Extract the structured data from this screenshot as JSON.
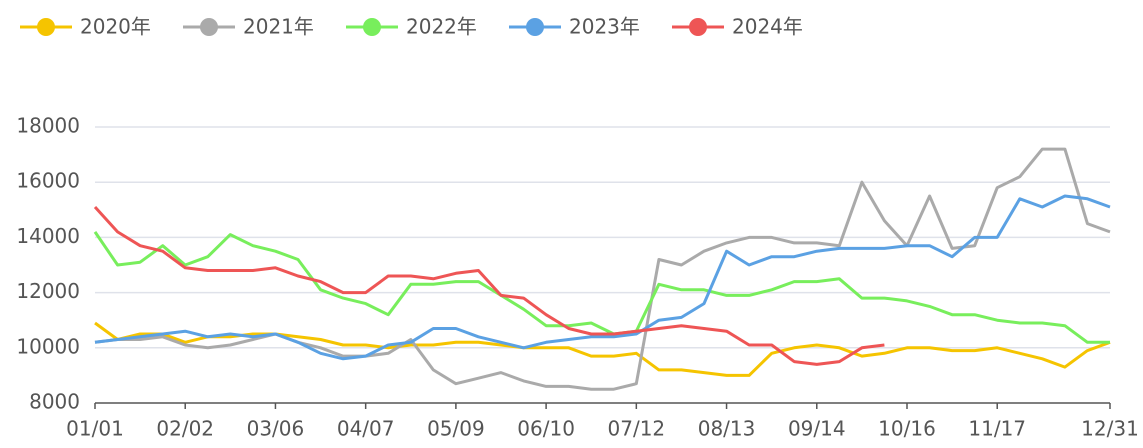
{
  "chart_data": {
    "type": "line",
    "categories": [
      "01/01",
      null,
      null,
      null,
      "02/02",
      null,
      null,
      null,
      "03/06",
      null,
      null,
      null,
      "04/07",
      null,
      null,
      null,
      "05/09",
      null,
      null,
      null,
      "06/10",
      null,
      null,
      null,
      "07/12",
      null,
      null,
      null,
      "08/13",
      null,
      null,
      null,
      "09/14",
      null,
      null,
      null,
      "10/16",
      null,
      null,
      null,
      "11/17",
      null,
      null,
      null,
      null,
      "12/31"
    ],
    "series": [
      {
        "name": "2020年",
        "color": "#f5c400",
        "values": [
          10900,
          10300,
          10500,
          10500,
          10200,
          10400,
          10400,
          10500,
          10500,
          10400,
          10300,
          10100,
          10100,
          10000,
          10100,
          10100,
          10200,
          10200,
          10100,
          10000,
          10000,
          10000,
          9700,
          9700,
          9800,
          9200,
          9200,
          9100,
          9000,
          9000,
          9800,
          10000,
          10100,
          10000,
          9700,
          9800,
          10000,
          10000,
          9900,
          9900,
          10000,
          9800,
          9600,
          9300,
          9900,
          10200
        ]
      },
      {
        "name": "2021年",
        "color": "#aaaaaa",
        "values": [
          10200,
          10300,
          10300,
          10400,
          10100,
          10000,
          10100,
          10300,
          10500,
          10200,
          10000,
          9700,
          9700,
          9800,
          10300,
          9200,
          8700,
          8900,
          9100,
          8800,
          8600,
          8600,
          8500,
          8500,
          8700,
          13200,
          13000,
          13500,
          13800,
          14000,
          14000,
          13800,
          13800,
          13700,
          16000,
          14600,
          13700,
          15500,
          13600,
          13700,
          15800,
          16200,
          17200,
          17200,
          14500,
          14200
        ]
      },
      {
        "name": "2022年",
        "color": "#78ee5c",
        "values": [
          14200,
          13000,
          13100,
          13700,
          13000,
          13300,
          14100,
          13700,
          13500,
          13200,
          12100,
          11800,
          11600,
          11200,
          12300,
          12300,
          12400,
          12400,
          11900,
          11400,
          10800,
          10800,
          10900,
          10500,
          10600,
          12300,
          12100,
          12100,
          11900,
          11900,
          12100,
          12400,
          12400,
          12500,
          11800,
          11800,
          11700,
          11500,
          11200,
          11200,
          11000,
          10900,
          10900,
          10800,
          10200,
          10200
        ]
      },
      {
        "name": "2023年",
        "color": "#5ba1e3",
        "values": [
          10200,
          10300,
          10400,
          10500,
          10600,
          10400,
          10500,
          10400,
          10500,
          10200,
          9800,
          9600,
          9700,
          10100,
          10200,
          10700,
          10700,
          10400,
          10200,
          10000,
          10200,
          10300,
          10400,
          10400,
          10500,
          11000,
          11100,
          11600,
          13500,
          13000,
          13300,
          13300,
          13500,
          13600,
          13600,
          13600,
          13700,
          13700,
          13300,
          14000,
          14000,
          15400,
          15100,
          15500,
          15400,
          15100
        ]
      },
      {
        "name": "2024年",
        "color": "#ee5555",
        "values": [
          15100,
          14200,
          13700,
          13500,
          12900,
          12800,
          12800,
          12800,
          12900,
          12600,
          12400,
          12000,
          12000,
          12600,
          12600,
          12500,
          12700,
          12800,
          11900,
          11800,
          11200,
          10700,
          10500,
          10500,
          10600,
          10700,
          10800,
          10700,
          10600,
          10100,
          10100,
          9500,
          9400,
          9500,
          10000,
          10100,
          null,
          null,
          null,
          null,
          null,
          null,
          null,
          null,
          null,
          null
        ]
      }
    ],
    "ylim": [
      8000,
      18000
    ],
    "yticks": [
      8000,
      10000,
      12000,
      14000,
      16000,
      18000
    ],
    "grid": true
  }
}
